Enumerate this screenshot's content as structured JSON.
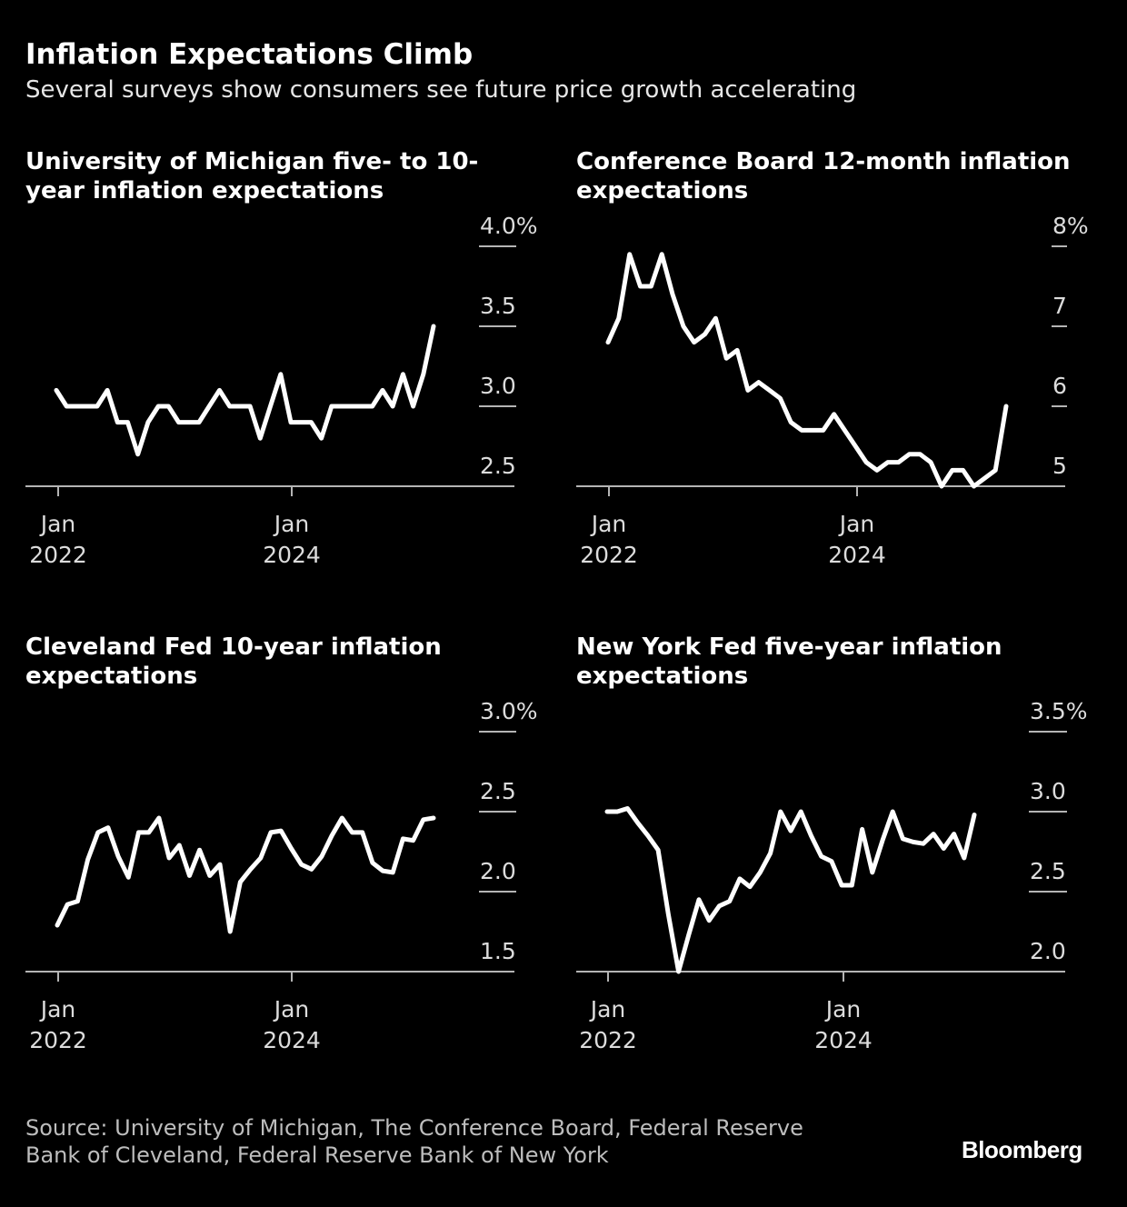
{
  "header": {
    "title": "Inflation Expectations Climb",
    "subtitle": "Several surveys show consumers see future price growth accelerating"
  },
  "footer": {
    "source_line1": "Source: University of Michigan, The Conference Board, Federal Reserve",
    "source_line2": "Bank of Cleveland, Federal Reserve Bank of New York",
    "logo": "Bloomberg"
  },
  "colors": {
    "background": "#000000",
    "line": "#ffffff",
    "axis": "#b4b4b4",
    "text": "#dcdcdc"
  },
  "chart_data": [
    {
      "type": "line",
      "title": "University of Michigan five- to 10-year inflation expectations",
      "x_start": "2022-01",
      "x_frequency": "monthly",
      "x_ticks": [
        {
          "line1": "Jan",
          "line2": "2022",
          "x": "2022-01"
        },
        {
          "line1": "Jan",
          "line2": "2024",
          "x": "2024-01"
        }
      ],
      "y_ticks": [
        "4.0%",
        "3.5",
        "3.0",
        "2.5"
      ],
      "y_tick_values": [
        4.0,
        3.5,
        3.0,
        2.5
      ],
      "ylim": [
        2.5,
        4.0
      ],
      "values": [
        3.1,
        3.0,
        3.0,
        3.0,
        3.0,
        3.1,
        2.9,
        2.9,
        2.7,
        2.9,
        3.0,
        3.0,
        2.9,
        2.9,
        2.9,
        3.0,
        3.1,
        3.0,
        3.0,
        3.0,
        2.8,
        3.0,
        3.2,
        2.9,
        2.9,
        2.9,
        2.8,
        3.0,
        3.0,
        3.0,
        3.0,
        3.0,
        3.1,
        3.0,
        3.2,
        3.0,
        3.2,
        3.5
      ]
    },
    {
      "type": "line",
      "title": "Conference Board 12-month inflation expectations",
      "x_start": "2022-01",
      "x_frequency": "monthly",
      "x_ticks": [
        {
          "line1": "Jan",
          "line2": "2022",
          "x": "2022-01"
        },
        {
          "line1": "Jan",
          "line2": "2024",
          "x": "2024-01"
        }
      ],
      "y_ticks": [
        "8%",
        "7",
        "6",
        "5"
      ],
      "y_tick_values": [
        8,
        7,
        6,
        5
      ],
      "ylim": [
        5,
        8
      ],
      "values": [
        6.8,
        7.1,
        7.9,
        7.5,
        7.5,
        7.9,
        7.4,
        7.0,
        6.8,
        6.9,
        7.1,
        6.6,
        6.7,
        6.2,
        6.3,
        6.2,
        6.1,
        5.8,
        5.7,
        5.7,
        5.7,
        5.9,
        5.7,
        5.5,
        5.3,
        5.2,
        5.3,
        5.3,
        5.4,
        5.4,
        5.3,
        5.0,
        5.2,
        5.2,
        5.0,
        5.1,
        5.2,
        6.0
      ]
    },
    {
      "type": "line",
      "title": "Cleveland Fed 10-year inflation expectations",
      "x_start": "2022-01",
      "x_frequency": "monthly",
      "x_ticks": [
        {
          "line1": "Jan",
          "line2": "2022",
          "x": "2022-01"
        },
        {
          "line1": "Jan",
          "line2": "2024",
          "x": "2024-01"
        }
      ],
      "y_ticks": [
        "3.0%",
        "2.5",
        "2.0",
        "1.5"
      ],
      "y_tick_values": [
        3.0,
        2.5,
        2.0,
        1.5
      ],
      "ylim": [
        1.5,
        3.0
      ],
      "values": [
        1.79,
        1.92,
        1.94,
        2.2,
        2.37,
        2.4,
        2.22,
        2.09,
        2.37,
        2.37,
        2.46,
        2.21,
        2.29,
        2.1,
        2.26,
        2.1,
        2.17,
        1.75,
        2.06,
        2.14,
        2.21,
        2.37,
        2.38,
        2.27,
        2.17,
        2.14,
        2.22,
        2.35,
        2.46,
        2.37,
        2.37,
        2.18,
        2.13,
        2.12,
        2.33,
        2.32,
        2.45,
        2.46
      ]
    },
    {
      "type": "line",
      "title": "New York Fed five-year inflation expectations",
      "x_start": "2022-01",
      "x_frequency": "monthly",
      "x_ticks": [
        {
          "line1": "Jan",
          "line2": "2022",
          "x": "2022-01"
        },
        {
          "line1": "Jan",
          "line2": "2024",
          "x": "2024-01"
        }
      ],
      "y_ticks": [
        "3.5%",
        "3.0",
        "2.5",
        "2.0"
      ],
      "y_tick_values": [
        3.5,
        3.0,
        2.5,
        2.0
      ],
      "ylim": [
        2.0,
        3.5
      ],
      "values": [
        3.0,
        3.0,
        3.02,
        2.93,
        2.85,
        2.76,
        2.36,
        2.0,
        2.23,
        2.45,
        2.32,
        2.41,
        2.44,
        2.58,
        2.53,
        2.62,
        2.74,
        3.0,
        2.88,
        3.0,
        2.85,
        2.72,
        2.69,
        2.54,
        2.54,
        2.89,
        2.62,
        2.82,
        3.0,
        2.83,
        2.81,
        2.8,
        2.86,
        2.77,
        2.86,
        2.71,
        2.98
      ]
    }
  ]
}
